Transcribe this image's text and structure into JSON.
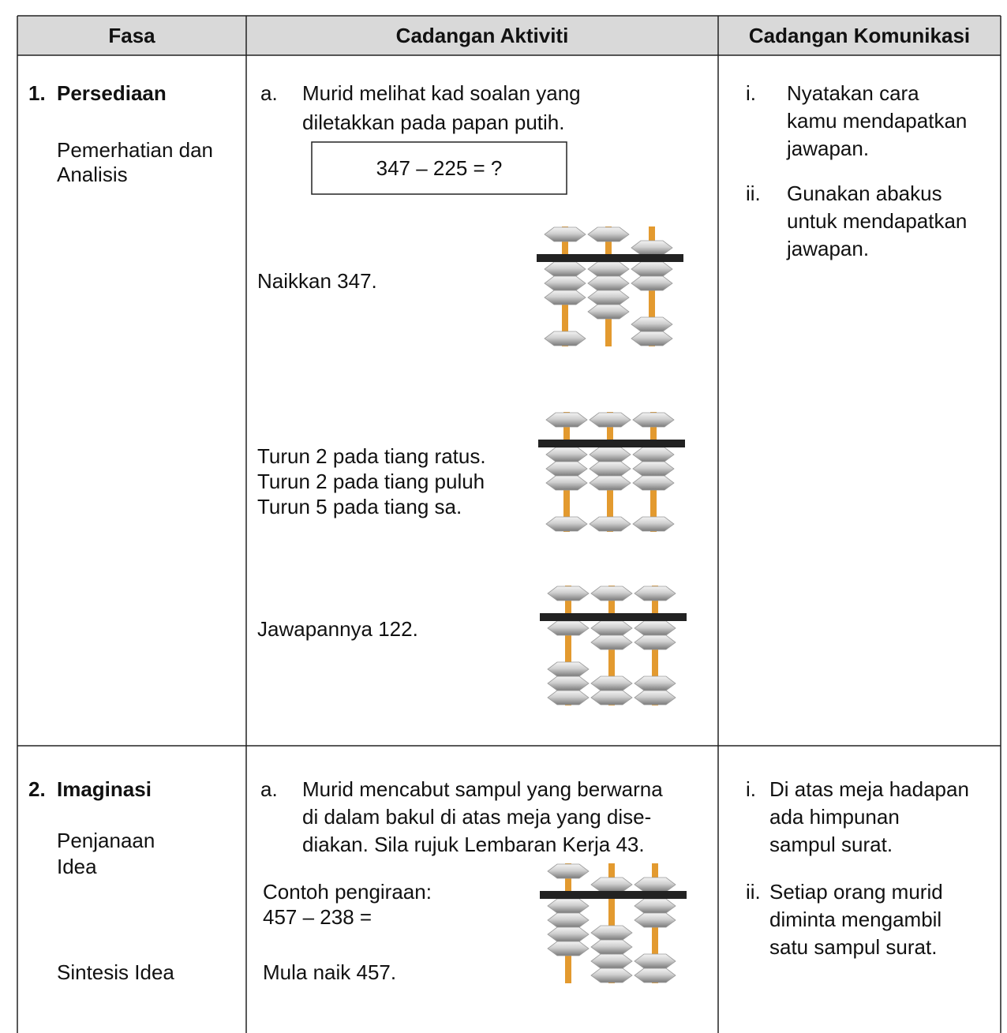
{
  "table": {
    "header": [
      "Fasa",
      "Cadangan Aktiviti",
      "Cadangan Komunikasi"
    ],
    "rows": [
      {
        "number": "1.",
        "phase": "Persediaan",
        "sub": [
          "Pemerhatian dan",
          "Analisis"
        ],
        "activity_marker": "a.",
        "activity": [
          "Murid melihat kad soalan yang",
          "diletakkan pada papan putih."
        ],
        "question": "347 – 225 = ?",
        "steps": [
          [
            "Naikkan 347."
          ],
          [
            "Turun 2 pada tiang ratus.",
            "Turun 2 pada tiang puluh",
            "Turun 5 pada tiang sa."
          ],
          [
            "Jawapannya 122."
          ]
        ],
        "communication": [
          {
            "marker": "i.",
            "lines": [
              "Nyatakan cara",
              "kamu mendapatkan",
              "jawapan."
            ]
          },
          {
            "marker": "ii.",
            "lines": [
              "Gunakan abakus",
              "untuk mendapatkan",
              "jawapan."
            ]
          }
        ]
      },
      {
        "number": "2.",
        "phase": "Imaginasi",
        "sub": [
          "Penjanaan",
          "Idea"
        ],
        "sub2": "Sintesis Idea",
        "activity_marker": "a.",
        "activity": [
          "Murid mencabut sampul yang berwarna",
          "di dalam bakul di atas meja yang dise-",
          "diakan. Sila rujuk Lembaran Kerja 43."
        ],
        "example": [
          "Contoh pengiraan:",
          "457 – 238 ="
        ],
        "start": "Mula naik 457.",
        "communication": [
          {
            "marker": "i.",
            "lines": [
              "Di atas meja hadapan",
              "ada himpunan",
              "sampul surat."
            ]
          },
          {
            "marker": "ii.",
            "lines": [
              "Setiap orang murid",
              "diminta mengambil",
              "satu sampul surat."
            ]
          }
        ]
      }
    ]
  }
}
